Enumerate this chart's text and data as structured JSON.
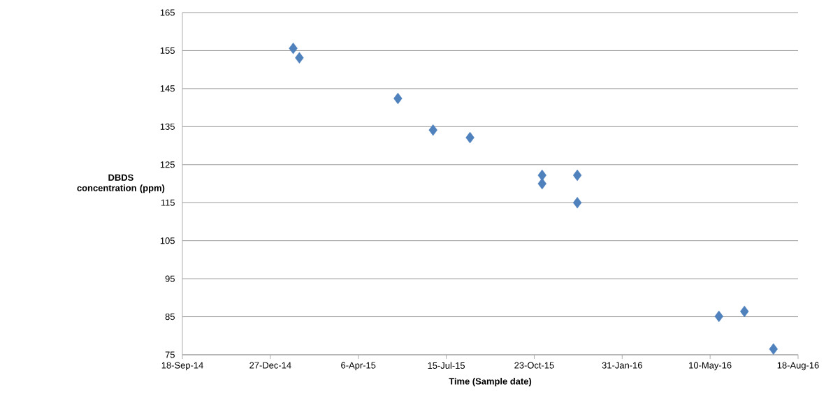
{
  "chart_data": {
    "type": "scatter",
    "xlabel": "Time (Sample date)",
    "ylabel": "DBDS concentration (ppm)",
    "x": [
      "2015-01-22",
      "2015-01-29",
      "2015-05-21",
      "2015-06-30",
      "2015-08-11",
      "2015-11-01",
      "2015-11-01",
      "2015-12-11",
      "2015-12-11",
      "2016-05-20",
      "2016-06-18",
      "2016-07-21"
    ],
    "values": [
      155.6,
      153.1,
      142.4,
      134.1,
      132.1,
      122.2,
      120.0,
      122.2,
      115.0,
      85.1,
      86.4,
      76.5
    ],
    "color": "#4f81bd",
    "marker": "diamond",
    "grid": "y",
    "xlim": [
      "2014-09-18",
      "2016-08-18"
    ],
    "xticks": [
      {
        "value": "2014-09-18",
        "label": "18-Sep-14"
      },
      {
        "value": "2014-12-27",
        "label": "27-Dec-14"
      },
      {
        "value": "2015-04-06",
        "label": "6-Apr-15"
      },
      {
        "value": "2015-07-15",
        "label": "15-Jul-15"
      },
      {
        "value": "2015-10-23",
        "label": "23-Oct-15"
      },
      {
        "value": "2016-01-31",
        "label": "31-Jan-16"
      },
      {
        "value": "2016-05-10",
        "label": "10-May-16"
      },
      {
        "value": "2016-08-18",
        "label": "18-Aug-16"
      }
    ],
    "ylim": [
      75,
      165
    ],
    "yticks": [
      75,
      85,
      95,
      105,
      115,
      125,
      135,
      145,
      155,
      165
    ]
  }
}
